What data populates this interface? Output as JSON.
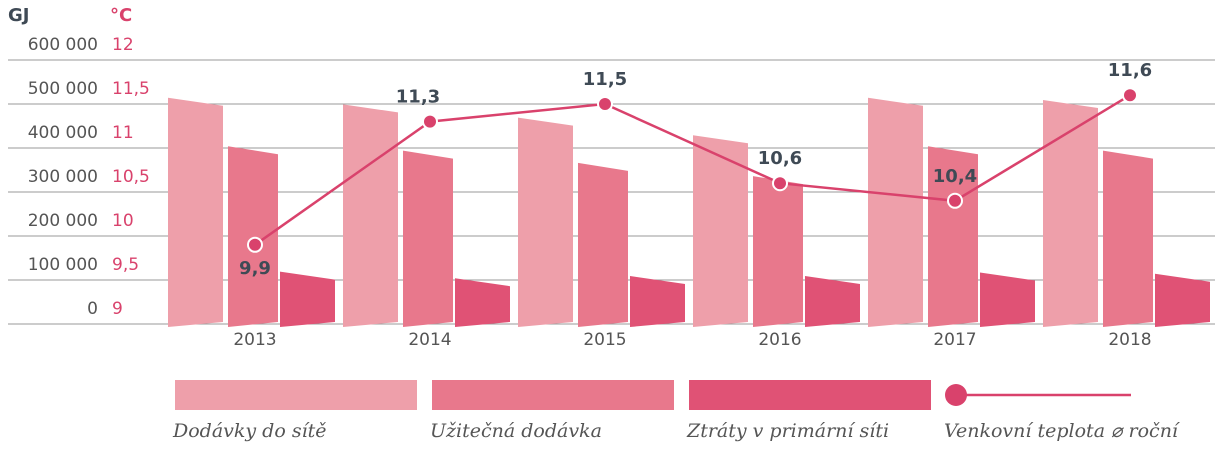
{
  "chart_data": {
    "type": "bar",
    "y_label": "GJ",
    "y2_label": "°C",
    "categories": [
      "2013",
      "2014",
      "2015",
      "2016",
      "2017",
      "2018"
    ],
    "ylim": [
      0,
      600000
    ],
    "yticks": [
      {
        "value": 0,
        "label": "0"
      },
      {
        "value": 100000,
        "label": "100 000"
      },
      {
        "value": 200000,
        "label": "200 000"
      },
      {
        "value": 300000,
        "label": "300 000"
      },
      {
        "value": 400000,
        "label": "400 000"
      },
      {
        "value": 500000,
        "label": "500 000"
      },
      {
        "value": 600000,
        "label": "600 000"
      }
    ],
    "y2lim": [
      9,
      12
    ],
    "y2ticks": [
      9,
      {
        "value": 9.5,
        "label": "9,5"
      },
      10,
      {
        "value": 10.5,
        "label": "10,5"
      },
      11,
      {
        "value": 11.5,
        "label": "11,5"
      },
      12
    ],
    "grid": true,
    "series": [
      {
        "name": "Dodávky do sítě",
        "color": "#ee9faa",
        "values": [
          505000,
          490000,
          460000,
          420000,
          505000,
          500000
        ]
      },
      {
        "name": "Užitečná dodávka",
        "color": "#e8788c",
        "values": [
          395000,
          385000,
          357000,
          327000,
          395000,
          385000
        ]
      },
      {
        "name": "Ztráty v primární síti",
        "color": "#e05275",
        "values": [
          110000,
          95000,
          100000,
          100000,
          108000,
          105000
        ]
      },
      {
        "name": "Venkovní teplota ⌀ roční",
        "color": "#d9426c",
        "type": "line",
        "axis": "y2",
        "values": [
          9.9,
          11.3,
          11.5,
          10.6,
          10.4,
          11.6
        ],
        "value_labels": [
          "9,9",
          "11,3",
          "11,5",
          "10,6",
          "10,4",
          "11,6"
        ]
      }
    ]
  }
}
